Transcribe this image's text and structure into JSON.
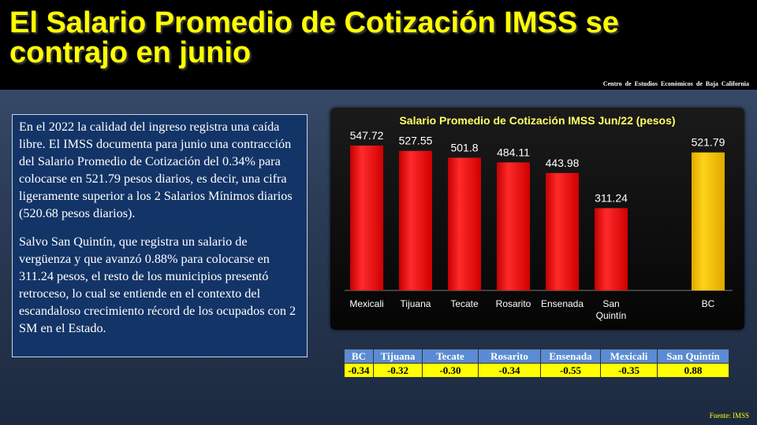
{
  "header": {
    "title": "El Salario Promedio de Cotización IMSS se contrajo en junio",
    "source_org": "Centro de Estudios Económicos de Baja California"
  },
  "textbox": {
    "paragraph1": "En el 2022 la calidad del ingreso registra una caída libre. El IMSS documenta para junio una contracción del Salario Promedio de Cotización del 0.34% para colocarse en 521.79 pesos diarios, es decir, una cifra ligeramente superior a los 2 Salarios Mínimos diarios (520.68 pesos diarios).",
    "paragraph2": "Salvo San Quintín, que registra un salario de vergüenza y que avanzó 0.88% para colocarse en 311.24 pesos, el resto de los municipios presentó retroceso, lo cual se entiende en el contexto del escandaloso crecimiento récord de los ocupados con 2 SM en el Estado."
  },
  "chart_data": {
    "type": "bar",
    "title": "Salario Promedio de Cotización IMSS  Jun/22  (pesos)",
    "categories": [
      "Mexicali",
      "Tijuana",
      "Tecate",
      "Rosarito",
      "Ensenada",
      "San Quintín",
      "BC"
    ],
    "values": [
      547.72,
      527.55,
      501.8,
      484.11,
      443.98,
      311.24,
      521.79
    ],
    "value_labels": [
      "547.72",
      "527.55",
      "501.8",
      "484.11",
      "443.98",
      "311.24",
      "521.79"
    ],
    "colors": [
      "#ff1a1a",
      "#ff1a1a",
      "#ff1a1a",
      "#ff1a1a",
      "#ff1a1a",
      "#ff1a1a",
      "#ffcc00"
    ],
    "ylim": [
      0,
      600
    ],
    "grid": false,
    "legend": "none"
  },
  "table": {
    "headers": [
      "BC",
      "Tijuana",
      "Tecate",
      "Rosarito",
      "Ensenada",
      "Mexicali",
      "San Quintín"
    ],
    "values": [
      "-0.34",
      "-0.32",
      "-0.30",
      "-0.34",
      "-0.55",
      "-0.35",
      "0.88"
    ]
  },
  "footer": {
    "source": "Fuente: IMSS"
  }
}
